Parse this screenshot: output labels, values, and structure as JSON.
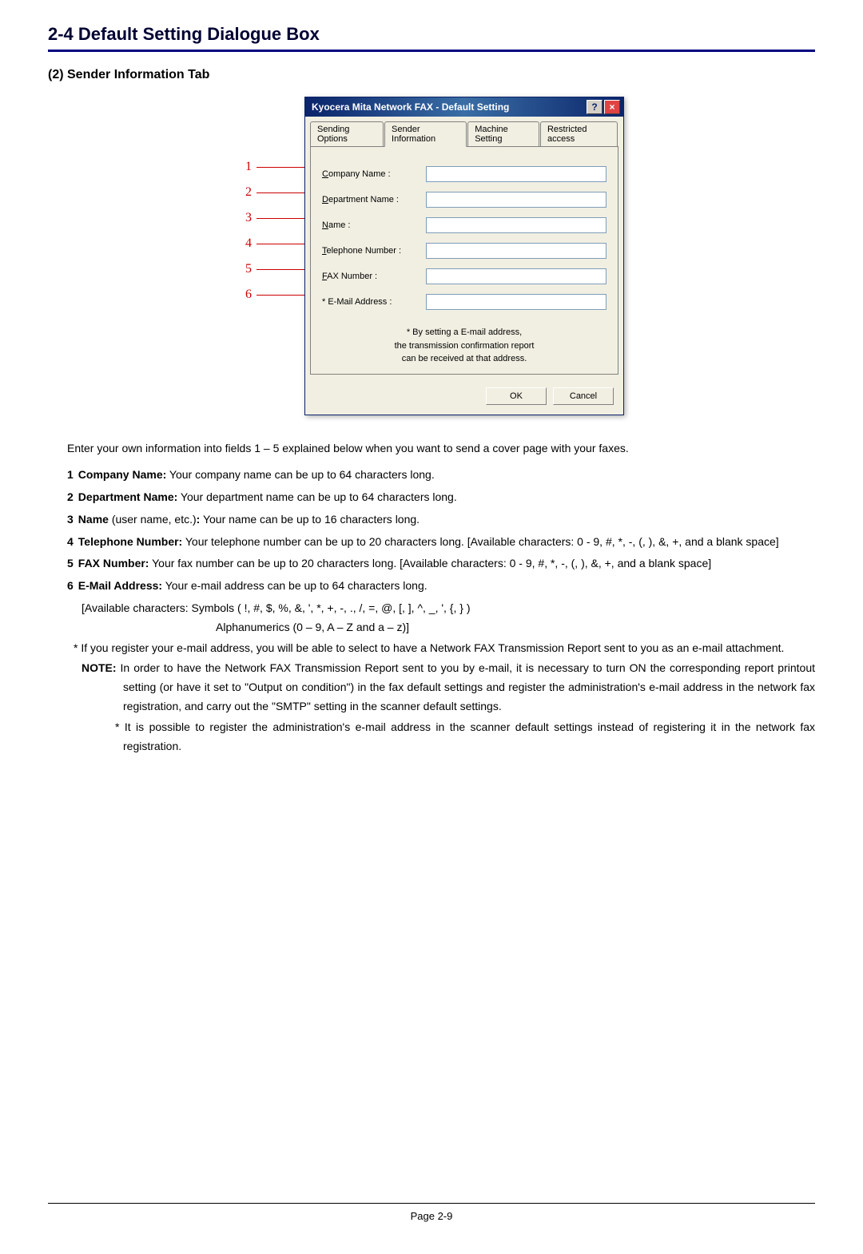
{
  "section_title": "2-4  Default Setting Dialogue Box",
  "subsection_title": "(2) Sender Information Tab",
  "dialog": {
    "title": "Kyocera Mita Network FAX - Default Setting",
    "help_glyph": "?",
    "close_glyph": "×",
    "tabs": {
      "sending": "Sending Options",
      "sender": "Sender Information",
      "machine": "Machine Setting",
      "restricted": "Restricted access"
    },
    "fields": {
      "company": "Company Name :",
      "department": "Department Name :",
      "name": "Name :",
      "telephone": "Telephone Number :",
      "fax": "FAX Number :",
      "email": "* E-Mail Address :"
    },
    "note_l1": "*  By setting a E-mail address,",
    "note_l2": "the transmission confirmation report",
    "note_l3": "can be received at that address.",
    "ok": "OK",
    "cancel": "Cancel"
  },
  "callouts": [
    "1",
    "2",
    "3",
    "4",
    "5",
    "6"
  ],
  "intro": "Enter your own information into fields 1 – 5 explained below when you want to send a cover page with your faxes.",
  "items": {
    "i1_n": "1",
    "i1_b": "Company Name:",
    "i1_t": " Your company name can be up to 64 characters long.",
    "i2_n": "2",
    "i2_b": "Department Name:",
    "i2_t": " Your department name can be up to 64 characters long.",
    "i3_n": "3",
    "i3_b": "Name",
    "i3_m": " (user name, etc.)",
    "i3_b2": ":",
    "i3_t": " Your name can be up to 16 characters long.",
    "i4_n": "4",
    "i4_b": "Telephone Number:",
    "i4_t": " Your telephone number can be up to 20 characters long.  [Available characters: 0 - 9, #, *, -, (, ), &, +, and a blank space]",
    "i5_n": "5",
    "i5_b": "FAX Number:",
    "i5_t": " Your fax number can be up to 20 characters long. [Available characters: 0 - 9, #, *, -, (, ), &, +, and a blank space]",
    "i6_n": "6",
    "i6_b": "E-Mail Address:",
    "i6_t": " Your e-mail address can be up to 64 characters long."
  },
  "sub1": "[Available characters: Symbols ( !, #, $, %, &, ', *, +, -, ., /, =, @, [, ], ^, _, ', {, } )",
  "sub2": "Alphanumerics  (0 – 9, A – Z and a – z)]",
  "star1": "* If you register your e-mail address, you will be able to select to have a Network FAX Transmission Report sent to you as an e-mail attachment.",
  "note_b": "NOTE:",
  "note_t": " In order to have the Network FAX Transmission Report sent to you by e-mail, it is necessary to turn ON the corresponding report printout setting (or have it set to \"Output on condition\") in the fax default settings and register the administration's e-mail address in the network fax registration, and carry out the \"SMTP\" setting in the scanner default settings.",
  "note_star": "* It is possible to register the administration's e-mail address in the scanner default settings instead of registering it in the network fax registration.",
  "footer": "Page 2-9"
}
